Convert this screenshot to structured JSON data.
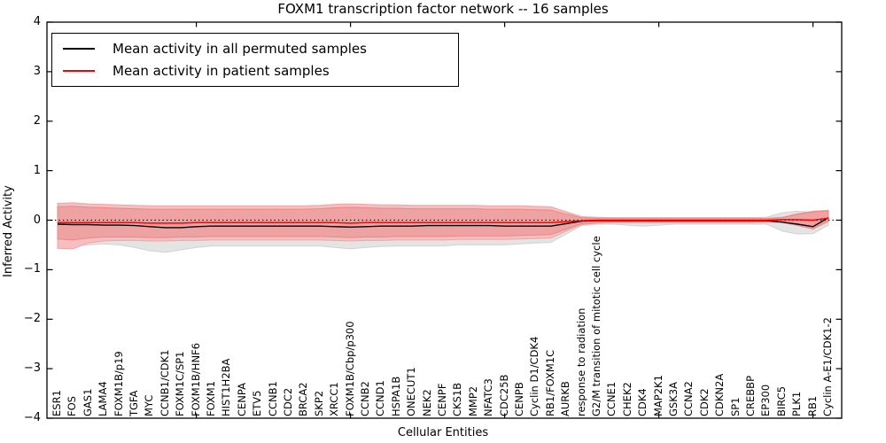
{
  "chart_data": {
    "type": "line",
    "title": "FOXM1 transcription factor network -- 16 samples",
    "xlabel": "Cellular Entities",
    "ylabel": "Inferred Activity",
    "ylim": [
      -4,
      4
    ],
    "yticks": [
      4,
      3,
      2,
      1,
      0,
      -1,
      -2,
      -3,
      -4
    ],
    "xtick_positions": [
      10,
      20,
      30,
      40,
      50
    ],
    "zero_line": 0,
    "legend_position": "upper-left",
    "grid": false,
    "categories": [
      "ESR1",
      "FOS",
      "GAS1",
      "LAMA4",
      "FOXM1B/p19",
      "TGFA",
      "MYC",
      "CCNB1/CDK1",
      "FOXM1C/SP1",
      "FOXM1B/HNF6",
      "FOXM1",
      "HIST1H2BA",
      "CENPA",
      "ETV5",
      "CCNB1",
      "CDC2",
      "BRCA2",
      "SKP2",
      "XRCC1",
      "FOXM1B/Cbp/p300",
      "CCNB2",
      "CCND1",
      "HSPA1B",
      "ONECUT1",
      "NEK2",
      "CENPF",
      "CKS1B",
      "MMP2",
      "NFATC3",
      "CDC25B",
      "CENPB",
      "Cyclin D1/CDK4",
      "RB1/FOXM1C",
      "AURKB",
      "response to radiation",
      "G2/M transition of mitotic cell cycle",
      "CCNE1",
      "CHEK2",
      "CDK4",
      "MAP2K1",
      "GSK3A",
      "CCNA2",
      "CDK2",
      "CDKN2A",
      "SP1",
      "CREBBP",
      "EP300",
      "BIRC5",
      "PLK1",
      "RB1",
      "Cyclin A-E1/CDK1-2"
    ],
    "legend": [
      {
        "id": "permuted",
        "label": "Mean activity in all permuted samples",
        "color": "#000000"
      },
      {
        "id": "patient",
        "label": "Mean activity in patient samples",
        "color": "#ff0000"
      }
    ],
    "series": [
      {
        "id": "permuted",
        "name": "Mean activity in all permuted samples",
        "color": "#000000",
        "width": 1.4,
        "values": [
          -0.08,
          -0.09,
          -0.09,
          -0.1,
          -0.1,
          -0.11,
          -0.13,
          -0.15,
          -0.15,
          -0.13,
          -0.12,
          -0.12,
          -0.12,
          -0.12,
          -0.12,
          -0.12,
          -0.12,
          -0.12,
          -0.13,
          -0.14,
          -0.13,
          -0.12,
          -0.12,
          -0.12,
          -0.11,
          -0.11,
          -0.11,
          -0.11,
          -0.11,
          -0.12,
          -0.12,
          -0.12,
          -0.12,
          -0.07,
          -0.02,
          -0.01,
          -0.01,
          -0.01,
          -0.01,
          -0.01,
          -0.01,
          -0.01,
          -0.01,
          -0.01,
          -0.01,
          -0.01,
          -0.01,
          -0.04,
          -0.08,
          -0.13,
          0.05
        ]
      },
      {
        "id": "patient",
        "name": "Mean activity in patient samples",
        "color": "#ff0000",
        "width": 1.5,
        "values": [
          -0.05,
          -0.05,
          -0.05,
          -0.05,
          -0.05,
          -0.05,
          -0.06,
          -0.06,
          -0.06,
          -0.05,
          -0.05,
          -0.05,
          -0.05,
          -0.05,
          -0.05,
          -0.05,
          -0.05,
          -0.05,
          -0.05,
          -0.06,
          -0.05,
          -0.05,
          -0.05,
          -0.05,
          -0.05,
          -0.05,
          -0.05,
          -0.05,
          -0.05,
          -0.05,
          -0.05,
          -0.05,
          -0.05,
          -0.03,
          -0.01,
          0,
          0,
          0,
          0,
          0,
          0,
          0,
          0,
          0,
          0,
          0,
          0,
          0.01,
          0.01,
          0,
          0.04
        ]
      }
    ],
    "bands": [
      {
        "id": "permuted-range",
        "fill": "#e4e4e4",
        "edge": "#d2d2d2",
        "upper": [
          0.25,
          0.26,
          0.26,
          0.26,
          0.25,
          0.25,
          0.25,
          0.25,
          0.25,
          0.25,
          0.25,
          0.25,
          0.25,
          0.25,
          0.25,
          0.25,
          0.25,
          0.25,
          0.25,
          0.25,
          0.25,
          0.25,
          0.25,
          0.25,
          0.25,
          0.25,
          0.25,
          0.25,
          0.25,
          0.25,
          0.25,
          0.24,
          0.23,
          0.15,
          0.07,
          0.06,
          0.05,
          0.05,
          0.05,
          0.05,
          0.05,
          0.05,
          0.05,
          0.05,
          0.05,
          0.05,
          0.06,
          0.15,
          0.18,
          0.16,
          0.08
        ],
        "lower": [
          -0.5,
          -0.52,
          -0.5,
          -0.48,
          -0.5,
          -0.55,
          -0.62,
          -0.65,
          -0.6,
          -0.55,
          -0.52,
          -0.52,
          -0.52,
          -0.52,
          -0.52,
          -0.52,
          -0.52,
          -0.52,
          -0.55,
          -0.58,
          -0.55,
          -0.53,
          -0.52,
          -0.52,
          -0.52,
          -0.52,
          -0.5,
          -0.5,
          -0.5,
          -0.5,
          -0.48,
          -0.46,
          -0.45,
          -0.28,
          -0.11,
          -0.08,
          -0.08,
          -0.1,
          -0.12,
          -0.1,
          -0.08,
          -0.08,
          -0.08,
          -0.08,
          -0.08,
          -0.08,
          -0.08,
          -0.22,
          -0.28,
          -0.27,
          -0.1
        ]
      },
      {
        "id": "patient-outer",
        "fill": "#f6bebe",
        "edge": "#f0a6a6",
        "upper": [
          0.34,
          0.35,
          0.33,
          0.32,
          0.31,
          0.3,
          0.29,
          0.29,
          0.29,
          0.29,
          0.29,
          0.29,
          0.29,
          0.29,
          0.29,
          0.29,
          0.29,
          0.3,
          0.32,
          0.33,
          0.32,
          0.31,
          0.31,
          0.3,
          0.3,
          0.3,
          0.3,
          0.3,
          0.29,
          0.29,
          0.29,
          0.28,
          0.27,
          0.17,
          0.07,
          0.05,
          0.05,
          0.05,
          0.05,
          0.05,
          0.05,
          0.05,
          0.05,
          0.05,
          0.05,
          0.05,
          0.04,
          0.06,
          0.13,
          0.18,
          0.2
        ],
        "lower": [
          -0.57,
          -0.58,
          -0.46,
          -0.42,
          -0.41,
          -0.41,
          -0.42,
          -0.42,
          -0.41,
          -0.41,
          -0.4,
          -0.4,
          -0.4,
          -0.4,
          -0.4,
          -0.4,
          -0.4,
          -0.4,
          -0.41,
          -0.42,
          -0.41,
          -0.41,
          -0.4,
          -0.4,
          -0.4,
          -0.4,
          -0.39,
          -0.39,
          -0.39,
          -0.39,
          -0.38,
          -0.37,
          -0.36,
          -0.22,
          -0.09,
          -0.06,
          -0.05,
          -0.05,
          -0.05,
          -0.05,
          -0.05,
          -0.05,
          -0.05,
          -0.05,
          -0.05,
          -0.05,
          -0.04,
          -0.05,
          -0.11,
          -0.18,
          -0.03
        ]
      },
      {
        "id": "patient-inner",
        "fill": "#efa2a2",
        "edge": "#e78989",
        "upper": [
          0.27,
          0.28,
          0.26,
          0.25,
          0.24,
          0.23,
          0.22,
          0.22,
          0.22,
          0.22,
          0.22,
          0.22,
          0.22,
          0.22,
          0.22,
          0.22,
          0.22,
          0.23,
          0.25,
          0.26,
          0.25,
          0.24,
          0.24,
          0.23,
          0.23,
          0.23,
          0.23,
          0.23,
          0.22,
          0.22,
          0.22,
          0.21,
          0.2,
          0.12,
          0.05,
          0.04,
          0.04,
          0.04,
          0.04,
          0.04,
          0.04,
          0.04,
          0.04,
          0.04,
          0.04,
          0.04,
          0.03,
          0.05,
          0.12,
          0.17,
          0.19
        ],
        "lower": [
          -0.38,
          -0.4,
          -0.36,
          -0.34,
          -0.34,
          -0.34,
          -0.35,
          -0.35,
          -0.34,
          -0.34,
          -0.33,
          -0.33,
          -0.33,
          -0.33,
          -0.33,
          -0.33,
          -0.33,
          -0.33,
          -0.34,
          -0.35,
          -0.34,
          -0.34,
          -0.33,
          -0.33,
          -0.33,
          -0.33,
          -0.32,
          -0.32,
          -0.32,
          -0.32,
          -0.31,
          -0.3,
          -0.29,
          -0.18,
          -0.07,
          -0.05,
          -0.04,
          -0.04,
          -0.04,
          -0.04,
          -0.04,
          -0.04,
          -0.04,
          -0.04,
          -0.04,
          -0.04,
          -0.03,
          -0.04,
          -0.1,
          -0.17,
          -0.02
        ]
      }
    ]
  }
}
